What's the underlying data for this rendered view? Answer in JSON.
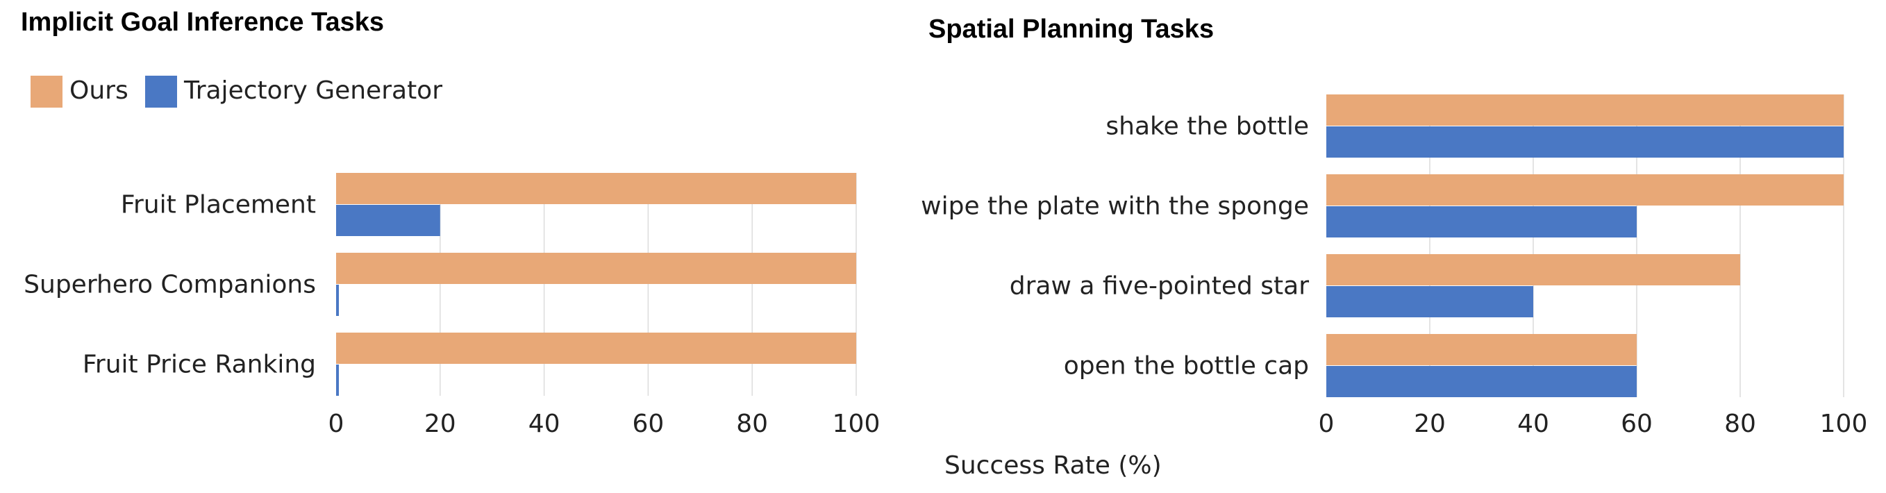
{
  "figure": {
    "xlabel": "Success Rate (%)"
  },
  "colors": {
    "ours": "#E8A877",
    "baseline": "#4A78C4"
  },
  "chart_data": [
    {
      "type": "bar",
      "orientation": "horizontal",
      "title": "Implicit Goal Inference Tasks",
      "categories": [
        "Fruit Placement",
        "Superhero Companions",
        "Fruit Price Ranking"
      ],
      "series": [
        {
          "name": "Ours",
          "values": [
            100,
            100,
            100
          ]
        },
        {
          "name": "Trajectory Generator",
          "values": [
            20,
            0,
            0
          ]
        }
      ],
      "xlim": [
        0,
        100
      ],
      "xticks": [
        0,
        20,
        40,
        60,
        80,
        100
      ],
      "grid": "vertical",
      "legend": "top-left"
    },
    {
      "type": "bar",
      "orientation": "horizontal",
      "title": "Spatial Planning Tasks",
      "categories": [
        "shake the bottle",
        "wipe the plate with the sponge",
        "draw a five-pointed star",
        "open the bottle cap"
      ],
      "series": [
        {
          "name": "Ours",
          "values": [
            100,
            100,
            80,
            60
          ]
        },
        {
          "name": "Trajectory Generator",
          "values": [
            100,
            60,
            40,
            60
          ]
        }
      ],
      "xlim": [
        0,
        100
      ],
      "xticks": [
        0,
        20,
        40,
        60,
        80,
        100
      ],
      "grid": "vertical"
    }
  ]
}
